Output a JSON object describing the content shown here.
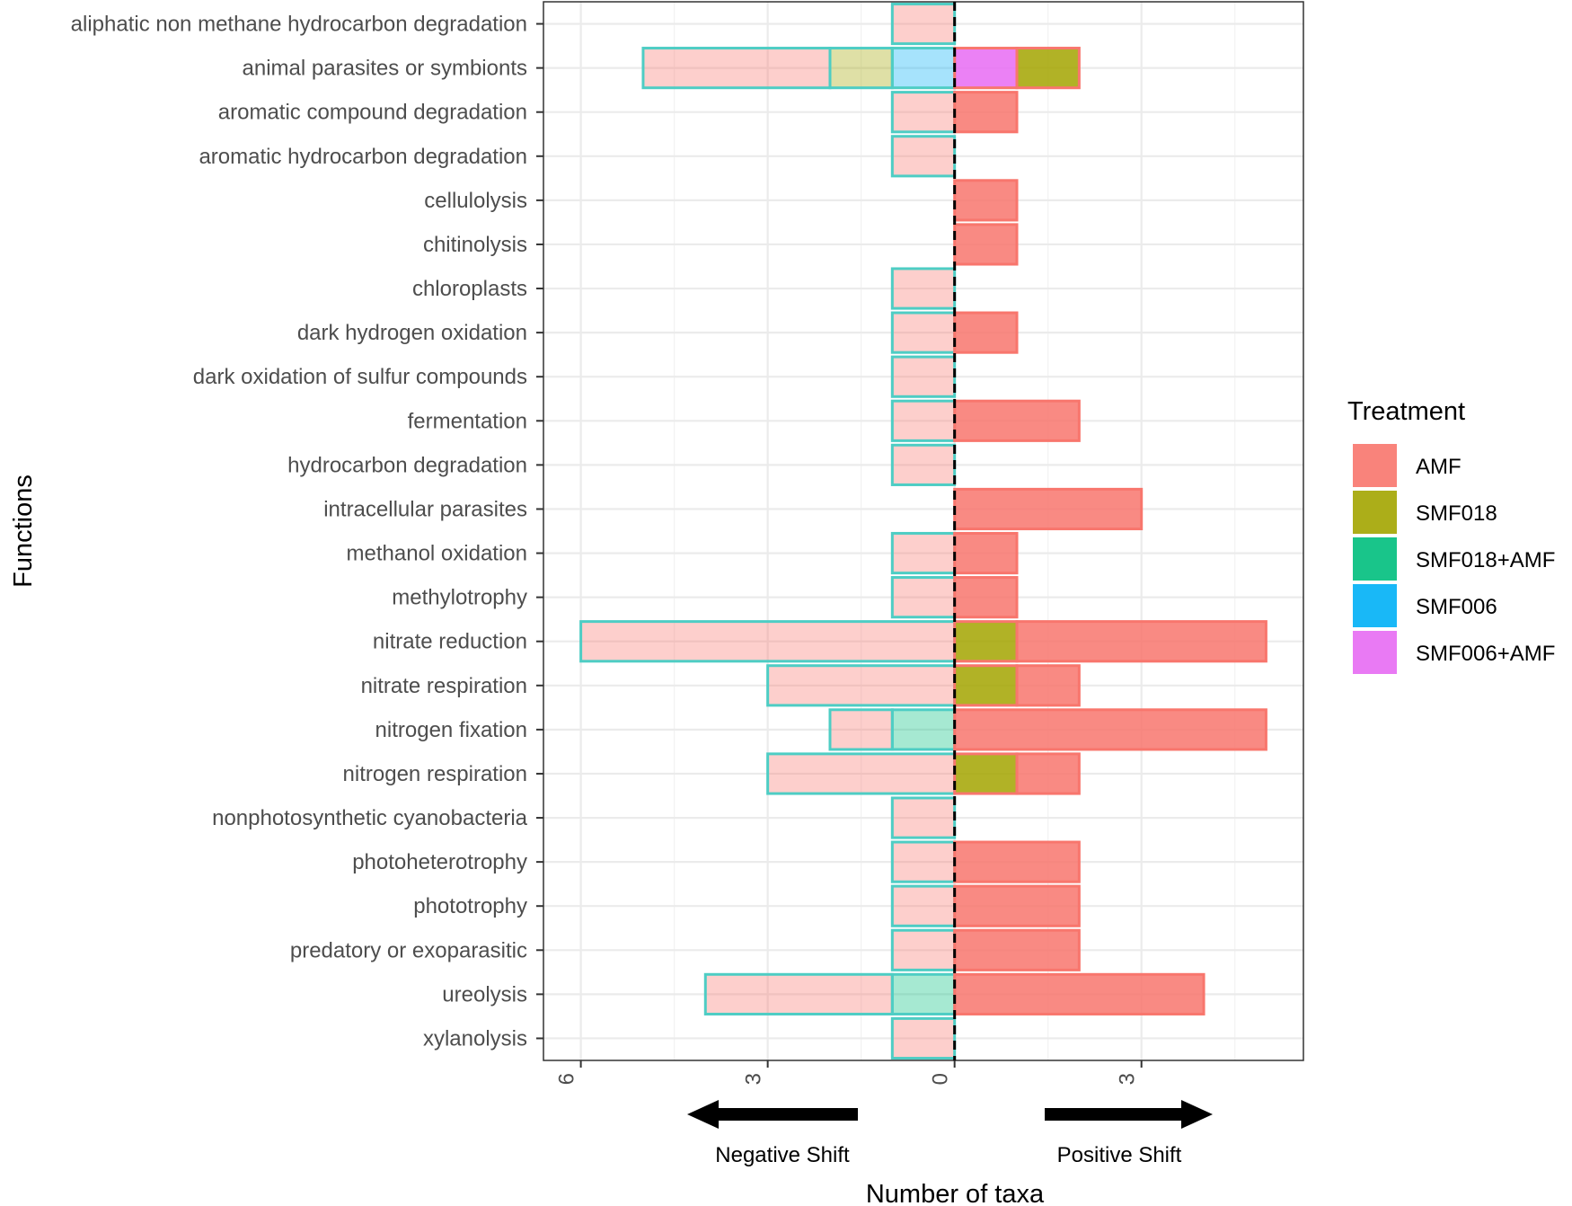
{
  "chart_data": {
    "type": "bar",
    "orientation": "horizontal",
    "xlabel": "Number of taxa",
    "ylabel": "Functions",
    "xlim": [
      -6.6,
      5.6
    ],
    "x_ticks": [
      -6,
      -3,
      0,
      3
    ],
    "x_tick_labels": [
      "6",
      "3",
      "0",
      "3"
    ],
    "grid": true,
    "zero_line": "dashed",
    "legend": {
      "title": "Treatment",
      "placement": "right",
      "entries": [
        {
          "name": "AMF",
          "color": "#F8766D"
        },
        {
          "name": "SMF018",
          "color": "#A3A500"
        },
        {
          "name": "SMF018+AMF",
          "color": "#00BF7D"
        },
        {
          "name": "SMF006",
          "color": "#00B0F6"
        },
        {
          "name": "SMF006+AMF",
          "color": "#E76BF3"
        }
      ]
    },
    "annotations": {
      "negative": "Negative Shift",
      "positive": "Positive Shift"
    },
    "categories": [
      "aliphatic non methane hydrocarbon degradation",
      "animal parasites or symbionts",
      "aromatic compound degradation",
      "aromatic hydrocarbon degradation",
      "cellulolysis",
      "chitinolysis",
      "chloroplasts",
      "dark hydrogen oxidation",
      "dark oxidation of sulfur compounds",
      "fermentation",
      "hydrocarbon degradation",
      "intracellular parasites",
      "methanol oxidation",
      "methylotrophy",
      "nitrate reduction",
      "nitrate respiration",
      "nitrogen fixation",
      "nitrogen respiration",
      "nonphotosynthetic cyanobacteria",
      "photoheterotrophy",
      "phototrophy",
      "predatory or exoparasitic",
      "ureolysis",
      "xylanolysis"
    ],
    "negative_series": [
      {
        "name": "SMF006",
        "values": [
          0,
          1,
          0,
          0,
          0,
          0,
          0,
          0,
          0,
          0,
          0,
          0,
          0,
          0,
          0,
          0,
          0,
          0,
          0,
          0,
          0,
          0,
          0,
          0
        ]
      },
      {
        "name": "SMF018",
        "values": [
          0,
          1,
          0,
          0,
          0,
          0,
          0,
          0,
          0,
          0,
          0,
          0,
          0,
          0,
          0,
          0,
          0,
          0,
          0,
          0,
          0,
          0,
          0,
          0
        ]
      },
      {
        "name": "SMF018+AMF",
        "values": [
          0,
          0,
          0,
          0,
          0,
          0,
          0,
          0,
          0,
          0,
          0,
          0,
          0,
          0,
          0,
          0,
          1,
          0,
          0,
          0,
          0,
          0,
          1,
          0
        ]
      },
      {
        "name": "AMF",
        "values": [
          1,
          3,
          1,
          1,
          0,
          0,
          1,
          1,
          1,
          1,
          1,
          0,
          1,
          1,
          6,
          3,
          1,
          3,
          1,
          1,
          1,
          1,
          3,
          1
        ]
      }
    ],
    "positive_series": [
      {
        "name": "SMF006+AMF",
        "values": [
          0,
          1,
          0,
          0,
          0,
          0,
          0,
          0,
          0,
          0,
          0,
          0,
          0,
          0,
          0,
          0,
          0,
          0,
          0,
          0,
          0,
          0,
          0,
          0
        ]
      },
      {
        "name": "SMF018",
        "values": [
          0,
          1,
          0,
          0,
          0,
          0,
          0,
          0,
          0,
          0,
          0,
          0,
          0,
          0,
          1,
          1,
          0,
          1,
          0,
          0,
          0,
          0,
          0,
          0
        ]
      },
      {
        "name": "AMF",
        "values": [
          0,
          0,
          1,
          0,
          1,
          1,
          0,
          1,
          0,
          2,
          0,
          3,
          1,
          1,
          4,
          1,
          5,
          1,
          0,
          2,
          2,
          2,
          4,
          0
        ]
      }
    ]
  }
}
